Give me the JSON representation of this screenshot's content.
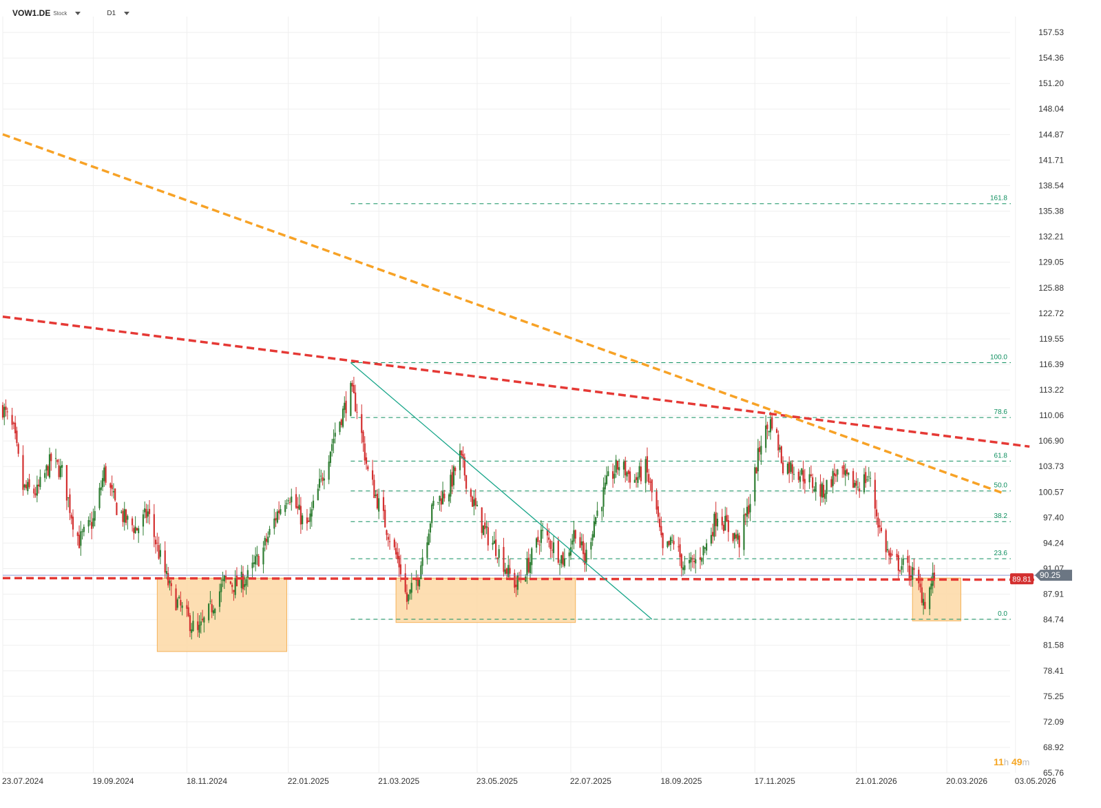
{
  "header": {
    "symbol": "VOW1.DE",
    "instrument_type": "Stock",
    "timeframe": "D1"
  },
  "timer": {
    "hours": "11",
    "hours_unit": "h",
    "minutes": "49",
    "minutes_unit": "m"
  },
  "colors": {
    "up": "#2e7d32",
    "down": "#d32f2f",
    "fib": "#0e8f5f",
    "red_trend": "#e53935",
    "orange_trend": "#f7a226",
    "zone_fill": "#fdd8a4",
    "zone_stroke": "#f4b25a",
    "price_tag": "#d32f2f",
    "last_tag": "#6b7683"
  },
  "chart_data": {
    "type": "candlestick",
    "y_axis": {
      "range": [
        65.76,
        159.5
      ],
      "ticks": [
        "157.53",
        "154.36",
        "151.20",
        "148.04",
        "144.87",
        "141.71",
        "138.54",
        "135.38",
        "132.21",
        "129.05",
        "125.88",
        "122.72",
        "119.55",
        "116.39",
        "113.22",
        "110.06",
        "106.90",
        "103.73",
        "100.57",
        "97.40",
        "94.24",
        "91.07",
        "87.91",
        "84.74",
        "81.58",
        "78.41",
        "75.25",
        "72.09",
        "68.92",
        "65.76"
      ]
    },
    "x_axis": {
      "range": [
        "2024-07-23",
        "2026-05-15"
      ],
      "ticks": [
        {
          "date": "2024-07-23",
          "label": "23.07.2024"
        },
        {
          "date": "2024-09-19",
          "label": "19.09.2024"
        },
        {
          "date": "2024-11-18",
          "label": "18.11.2024"
        },
        {
          "date": "2025-01-22",
          "label": "22.01.2025"
        },
        {
          "date": "2025-03-21",
          "label": "21.03.2025"
        },
        {
          "date": "2025-05-23",
          "label": "23.05.2025"
        },
        {
          "date": "2025-07-22",
          "label": "22.07.2025"
        },
        {
          "date": "2025-09-18",
          "label": "18.09.2025"
        },
        {
          "date": "2025-11-17",
          "label": "17.11.2025"
        },
        {
          "date": "2026-01-21",
          "label": "21.01.2026"
        },
        {
          "date": "2026-03-20",
          "label": "20.03.2026"
        },
        {
          "date": "2026-05-03",
          "label": "03.05.2026"
        }
      ]
    },
    "grid": true,
    "price_path": [
      [
        "2024-07-23",
        111.0
      ],
      [
        "2024-07-30",
        108.0
      ],
      [
        "2024-08-05",
        101.0
      ],
      [
        "2024-08-14",
        100.5
      ],
      [
        "2024-08-23",
        104.5
      ],
      [
        "2024-08-30",
        103.0
      ],
      [
        "2024-09-06",
        97.0
      ],
      [
        "2024-09-10",
        94.5
      ],
      [
        "2024-09-19",
        97.0
      ],
      [
        "2024-09-26",
        103.0
      ],
      [
        "2024-10-03",
        99.0
      ],
      [
        "2024-10-10",
        97.0
      ],
      [
        "2024-10-17",
        96.0
      ],
      [
        "2024-10-24",
        98.0
      ],
      [
        "2024-10-31",
        93.0
      ],
      [
        "2024-11-08",
        88.0
      ],
      [
        "2024-11-18",
        85.0
      ],
      [
        "2024-11-25",
        83.0
      ],
      [
        "2024-12-03",
        86.0
      ],
      [
        "2024-12-12",
        89.5
      ],
      [
        "2024-12-19",
        89.0
      ],
      [
        "2024-12-27",
        90.0
      ],
      [
        "2025-01-06",
        93.5
      ],
      [
        "2025-01-15",
        98.0
      ],
      [
        "2025-01-22",
        100.5
      ],
      [
        "2025-02-03",
        96.0
      ],
      [
        "2025-02-12",
        102.0
      ],
      [
        "2025-02-21",
        108.0
      ],
      [
        "2025-03-03",
        113.0
      ],
      [
        "2025-03-07",
        111.0
      ],
      [
        "2025-03-14",
        103.0
      ],
      [
        "2025-03-21",
        99.0
      ],
      [
        "2025-03-28",
        95.0
      ],
      [
        "2025-04-04",
        91.0
      ],
      [
        "2025-04-08",
        87.0
      ],
      [
        "2025-04-15",
        90.0
      ],
      [
        "2025-04-25",
        99.0
      ],
      [
        "2025-05-05",
        101.0
      ],
      [
        "2025-05-12",
        105.0
      ],
      [
        "2025-05-19",
        100.0
      ],
      [
        "2025-05-28",
        95.5
      ],
      [
        "2025-06-05",
        93.5
      ],
      [
        "2025-06-12",
        90.5
      ],
      [
        "2025-06-17",
        89.0
      ],
      [
        "2025-06-26",
        92.0
      ],
      [
        "2025-07-03",
        95.5
      ],
      [
        "2025-07-10",
        94.0
      ],
      [
        "2025-07-18",
        92.0
      ],
      [
        "2025-07-25",
        96.0
      ],
      [
        "2025-07-31",
        92.0
      ],
      [
        "2025-08-06",
        97.0
      ],
      [
        "2025-08-15",
        102.0
      ],
      [
        "2025-08-22",
        104.0
      ],
      [
        "2025-09-01",
        102.0
      ],
      [
        "2025-09-08",
        103.5
      ],
      [
        "2025-09-15",
        98.0
      ],
      [
        "2025-09-19",
        93.0
      ],
      [
        "2025-09-26",
        94.5
      ],
      [
        "2025-10-03",
        91.0
      ],
      [
        "2025-10-10",
        92.0
      ],
      [
        "2025-10-17",
        94.0
      ],
      [
        "2025-10-24",
        98.0
      ],
      [
        "2025-10-31",
        96.0
      ],
      [
        "2025-11-07",
        94.5
      ],
      [
        "2025-11-14",
        99.5
      ],
      [
        "2025-11-21",
        107.0
      ],
      [
        "2025-11-28",
        109.5
      ],
      [
        "2025-12-05",
        104.0
      ],
      [
        "2025-12-12",
        103.5
      ],
      [
        "2025-12-19",
        102.5
      ],
      [
        "2025-12-30",
        100.5
      ],
      [
        "2026-01-08",
        103.0
      ],
      [
        "2026-01-15",
        102.0
      ],
      [
        "2026-01-22",
        101.5
      ],
      [
        "2026-01-29",
        102.5
      ],
      [
        "2026-02-05",
        96.0
      ],
      [
        "2026-02-12",
        92.0
      ],
      [
        "2026-02-19",
        91.5
      ],
      [
        "2026-02-26",
        90.5
      ],
      [
        "2026-03-06",
        87.0
      ],
      [
        "2026-03-12",
        90.25
      ]
    ],
    "price_tags": {
      "support": {
        "value": 89.81,
        "label": "89.81"
      },
      "last": {
        "value": 90.25,
        "label": "90.25"
      },
      "last_line": 90.25
    },
    "fibonacci": {
      "start": "2025-03-03",
      "end": "2026-04-30",
      "levels": [
        {
          "label": "161.8",
          "value": 136.3
        },
        {
          "label": "100.0",
          "value": 116.6
        },
        {
          "label": "78.6",
          "value": 109.8
        },
        {
          "label": "61.8",
          "value": 104.4
        },
        {
          "label": "50.0",
          "value": 100.7
        },
        {
          "label": "38.2",
          "value": 96.9
        },
        {
          "label": "23.6",
          "value": 92.3
        },
        {
          "label": "0.0",
          "value": 84.8
        }
      ]
    },
    "trendlines": [
      {
        "name": "red-resistance",
        "style": "dashed",
        "color": "#e53935",
        "p1": [
          "2024-07-23",
          122.3
        ],
        "p2": [
          "2026-05-12",
          106.2
        ]
      },
      {
        "name": "orange-resistance",
        "style": "dashed",
        "color": "#f7a226",
        "p1": [
          "2024-07-23",
          144.9
        ],
        "p2": [
          "2026-04-24",
          100.5
        ]
      },
      {
        "name": "red-support",
        "style": "dashed",
        "color": "#e53935",
        "p1": [
          "2024-07-23",
          89.9
        ],
        "p2": [
          "2026-05-15",
          89.7
        ]
      },
      {
        "name": "teal-fib-anchor",
        "style": "solid",
        "color": "#17a589",
        "p1": [
          "2025-03-03",
          116.6
        ],
        "p2": [
          "2025-09-12",
          84.8
        ]
      }
    ],
    "zones": [
      {
        "name": "support-zone-1",
        "x1": "2024-10-30",
        "x2": "2025-01-21",
        "y1": 80.8,
        "y2": 89.9
      },
      {
        "name": "support-zone-2",
        "x1": "2025-04-01",
        "x2": "2025-07-25",
        "y1": 84.4,
        "y2": 89.9
      },
      {
        "name": "support-zone-3",
        "x1": "2026-02-26",
        "x2": "2026-03-29",
        "y1": 84.6,
        "y2": 89.9
      }
    ]
  }
}
